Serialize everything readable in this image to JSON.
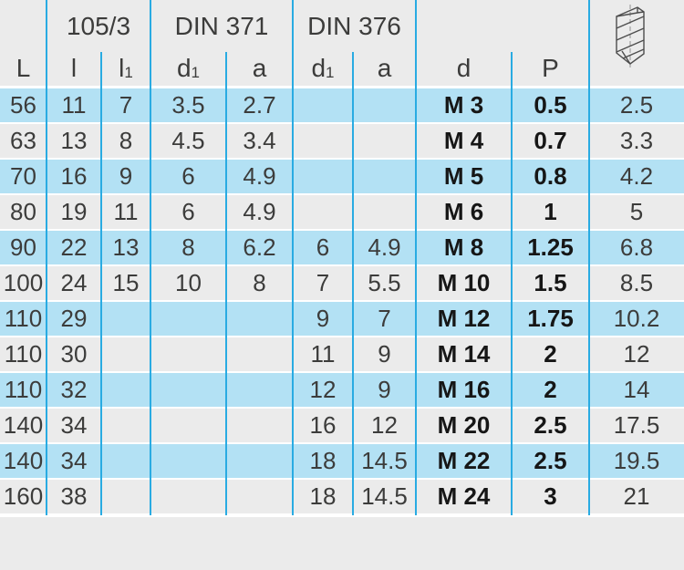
{
  "table": {
    "group_headers": [
      {
        "label": "105/3"
      },
      {
        "label": "DIN 371"
      },
      {
        "label": "DIN 376"
      }
    ],
    "column_headers": [
      {
        "base": "L",
        "sub": ""
      },
      {
        "base": "l",
        "sub": ""
      },
      {
        "base": "l",
        "sub": "1"
      },
      {
        "base": "d",
        "sub": "1"
      },
      {
        "base": "a",
        "sub": ""
      },
      {
        "base": "d",
        "sub": "1"
      },
      {
        "base": "a",
        "sub": ""
      },
      {
        "base": "d",
        "sub": ""
      },
      {
        "base": "P",
        "sub": ""
      },
      {
        "base": "",
        "sub": ""
      }
    ],
    "column_keys": [
      "L",
      "l",
      "l1",
      "din371-d1",
      "din371-a",
      "din376-d1",
      "din376-a",
      "d",
      "P",
      "core-hole"
    ],
    "header_icon": "drill-bit-icon",
    "rows": [
      [
        "56",
        "11",
        "7",
        "3.5",
        "2.7",
        "",
        "",
        "M 3",
        "0.5",
        "2.5"
      ],
      [
        "63",
        "13",
        "8",
        "4.5",
        "3.4",
        "",
        "",
        "M 4",
        "0.7",
        "3.3"
      ],
      [
        "70",
        "16",
        "9",
        "6",
        "4.9",
        "",
        "",
        "M 5",
        "0.8",
        "4.2"
      ],
      [
        "80",
        "19",
        "11",
        "6",
        "4.9",
        "",
        "",
        "M 6",
        "1",
        "5"
      ],
      [
        "90",
        "22",
        "13",
        "8",
        "6.2",
        "6",
        "4.9",
        "M 8",
        "1.25",
        "6.8"
      ],
      [
        "100",
        "24",
        "15",
        "10",
        "8",
        "7",
        "5.5",
        "M 10",
        "1.5",
        "8.5"
      ],
      [
        "110",
        "29",
        "",
        "",
        "",
        "9",
        "7",
        "M 12",
        "1.75",
        "10.2"
      ],
      [
        "110",
        "30",
        "",
        "",
        "",
        "11",
        "9",
        "M 14",
        "2",
        "12"
      ],
      [
        "110",
        "32",
        "",
        "",
        "",
        "12",
        "9",
        "M 16",
        "2",
        "14"
      ],
      [
        "140",
        "34",
        "",
        "",
        "",
        "16",
        "12",
        "M 20",
        "2.5",
        "17.5"
      ],
      [
        "140",
        "34",
        "",
        "",
        "",
        "18",
        "14.5",
        "M 22",
        "2.5",
        "19.5"
      ],
      [
        "160",
        "38",
        "",
        "",
        "",
        "18",
        "14.5",
        "M 24",
        "3",
        "21"
      ]
    ]
  },
  "colors": {
    "row_blue": "#b3e1f4",
    "row_gray": "#ebebeb",
    "grid_line": "#29abe2",
    "text": "#3c3c3b",
    "text_bold": "#161616",
    "bg": "#ebebeb",
    "sep": "#ffffff"
  }
}
